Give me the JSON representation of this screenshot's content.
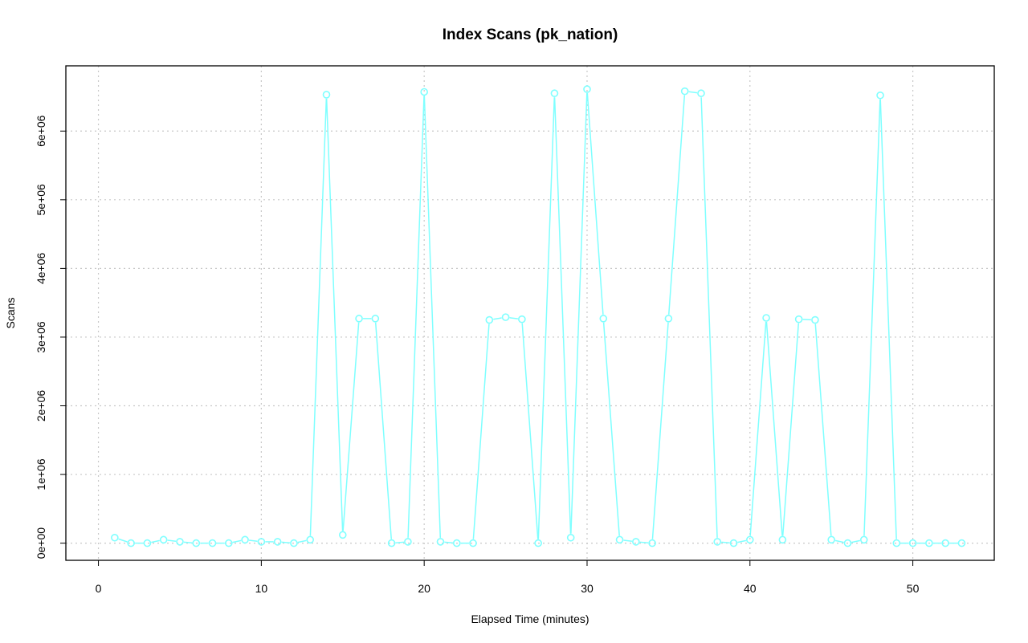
{
  "chart_data": {
    "type": "line",
    "title": "Index Scans (pk_nation)",
    "xlabel": "Elapsed Time (minutes)",
    "ylabel": "Scans",
    "xlim": [
      -2,
      55
    ],
    "ylim": [
      -250000,
      6950000
    ],
    "x_ticks": [
      0,
      10,
      20,
      30,
      40,
      50
    ],
    "x_tick_labels": [
      "0",
      "10",
      "20",
      "30",
      "40",
      "50"
    ],
    "y_ticks": [
      0,
      1000000,
      2000000,
      3000000,
      4000000,
      5000000,
      6000000
    ],
    "y_tick_labels": [
      "0e+00",
      "1e+06",
      "2e+06",
      "3e+06",
      "4e+06",
      "5e+06",
      "6e+06"
    ],
    "grid": true,
    "series_color": "#7fffff",
    "x": [
      1,
      2,
      3,
      4,
      5,
      6,
      7,
      8,
      9,
      10,
      11,
      12,
      13,
      14,
      15,
      16,
      17,
      18,
      19,
      20,
      21,
      22,
      23,
      24,
      25,
      26,
      27,
      28,
      29,
      30,
      31,
      32,
      33,
      34,
      35,
      36,
      37,
      38,
      39,
      40,
      41,
      42,
      43,
      44,
      45,
      46,
      47,
      48,
      49,
      50,
      51,
      52,
      53
    ],
    "y": [
      80000,
      0,
      0,
      50000,
      20000,
      0,
      0,
      0,
      50000,
      20000,
      20000,
      0,
      50000,
      6530000,
      120000,
      3270000,
      3270000,
      0,
      20000,
      6570000,
      20000,
      0,
      0,
      3250000,
      3290000,
      3260000,
      0,
      6550000,
      80000,
      6610000,
      3270000,
      50000,
      20000,
      0,
      3270000,
      6580000,
      6550000,
      20000,
      0,
      50000,
      3280000,
      50000,
      3260000,
      3250000,
      50000,
      0,
      50000,
      6520000,
      0,
      0,
      0,
      0,
      0
    ]
  }
}
